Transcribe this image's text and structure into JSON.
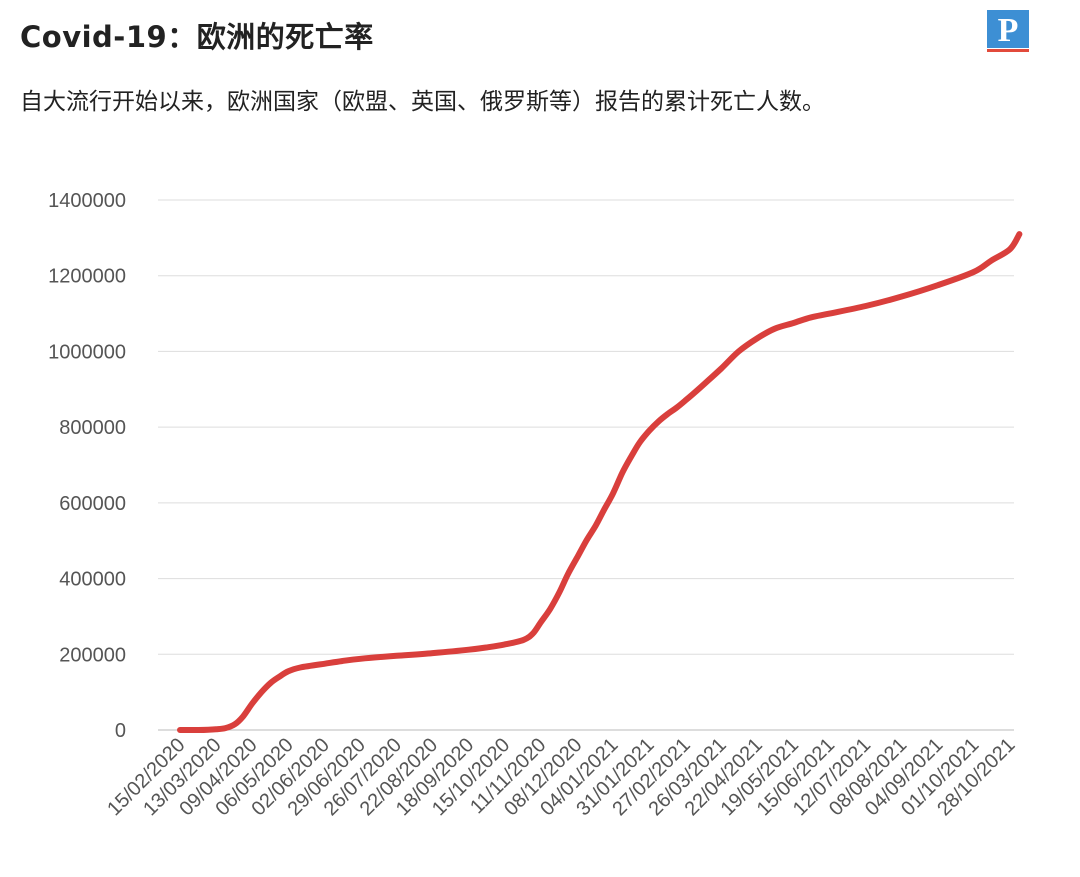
{
  "header": {
    "title": "Covid-19：欧洲的死亡率",
    "subtitle": "自大流行开始以来，欧洲国家（欧盟、英国、俄罗斯等）报告的累计死亡人数。",
    "logo_letter": "P"
  },
  "colors": {
    "line": "#d93f3c",
    "grid": "#dddddd",
    "logo_bg": "#3d8fd4"
  },
  "chart_data": {
    "type": "line",
    "title": "Covid-19：欧洲的死亡率",
    "subtitle": "自大流行开始以来，欧洲国家（欧盟、英国、俄罗斯等）报告的累计死亡人数。",
    "xlabel": "",
    "ylabel": "",
    "ylim": [
      0,
      1400000
    ],
    "y_ticks": [
      0,
      200000,
      400000,
      600000,
      800000,
      1000000,
      1200000,
      1400000
    ],
    "y_tick_labels": [
      "0",
      "200000",
      "400000",
      "600000",
      "800000",
      "1000000",
      "1200000",
      "1400000"
    ],
    "x_tick_labels": [
      "15/02/2020",
      "13/03/2020",
      "09/04/2020",
      "06/05/2020",
      "02/06/2020",
      "29/06/2020",
      "26/07/2020",
      "22/08/2020",
      "18/09/2020",
      "15/10/2020",
      "11/11/2020",
      "08/12/2020",
      "04/01/2021",
      "31/01/2021",
      "27/02/2021",
      "26/03/2021",
      "22/04/2021",
      "19/05/2021",
      "15/06/2021",
      "12/07/2021",
      "08/08/2021",
      "04/09/2021",
      "01/10/2021",
      "28/10/2021"
    ],
    "grid": true,
    "legend": "none",
    "series": [
      {
        "x": [
          "15/02/2020",
          "29/02/2020",
          "13/03/2020",
          "20/03/2020",
          "27/03/2020",
          "02/04/2020",
          "09/04/2020",
          "16/04/2020",
          "23/04/2020",
          "29/04/2020",
          "06/05/2020",
          "15/05/2020",
          "02/06/2020",
          "15/06/2020",
          "29/06/2020",
          "26/07/2020",
          "22/08/2020",
          "18/09/2020",
          "01/10/2020",
          "15/10/2020",
          "29/10/2020",
          "05/11/2020",
          "11/11/2020",
          "18/11/2020",
          "25/11/2020",
          "01/12/2020",
          "08/12/2020",
          "15/12/2020",
          "22/12/2020",
          "28/12/2020",
          "04/01/2021",
          "11/01/2021",
          "18/01/2021",
          "24/01/2021",
          "31/01/2021",
          "07/02/2021",
          "14/02/2021",
          "20/02/2021",
          "27/02/2021",
          "12/03/2021",
          "26/03/2021",
          "08/04/2021",
          "22/04/2021",
          "05/05/2021",
          "19/05/2021",
          "01/06/2021",
          "15/06/2021",
          "12/07/2021",
          "08/08/2021",
          "04/09/2021",
          "01/10/2021",
          "14/10/2021",
          "28/10/2021",
          "04/11/2021"
        ],
        "values": [
          0,
          0,
          2000,
          5000,
          15000,
          35000,
          70000,
          100000,
          125000,
          140000,
          155000,
          165000,
          175000,
          182000,
          188000,
          196000,
          203000,
          212000,
          218000,
          226000,
          238000,
          255000,
          285000,
          320000,
          365000,
          410000,
          455000,
          500000,
          540000,
          580000,
          625000,
          680000,
          725000,
          760000,
          790000,
          815000,
          835000,
          850000,
          870000,
          910000,
          955000,
          1000000,
          1035000,
          1060000,
          1075000,
          1090000,
          1100000,
          1120000,
          1145000,
          1175000,
          1210000,
          1240000,
          1270000,
          1310000
        ]
      }
    ]
  }
}
